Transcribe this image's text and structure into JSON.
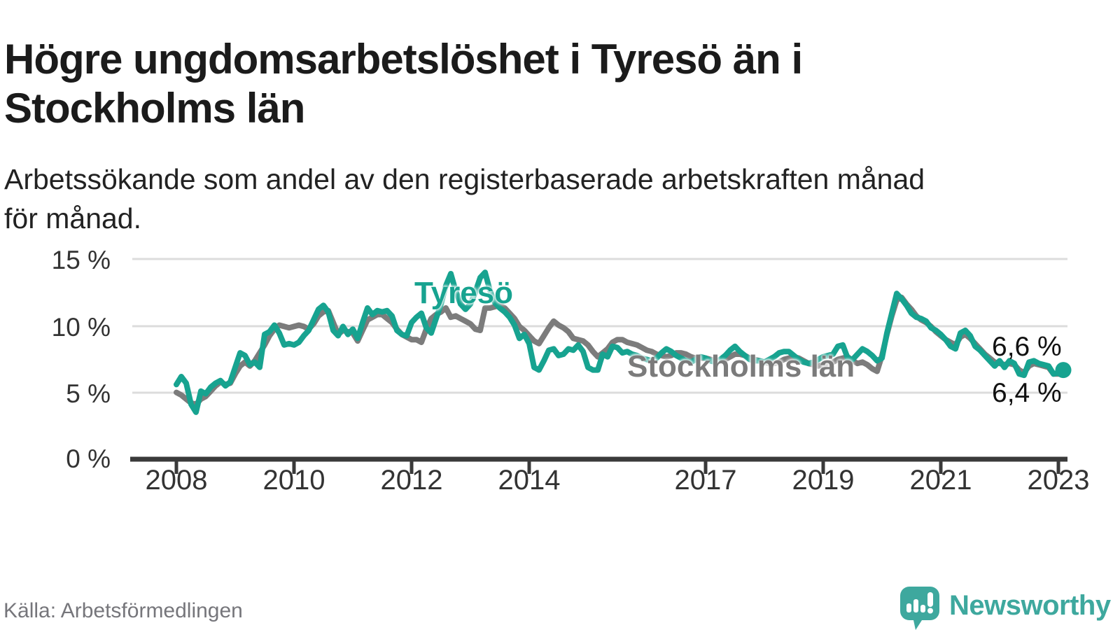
{
  "header": {
    "title_lines": "Högre ungdomsarbetslöshet i Tyresö än i\nStockholms län",
    "subtitle_lines": "Arbetssökande som andel av den registerbaserade arbetskraften månad\nför månad."
  },
  "footer": {
    "source": "Källa: Arbetsförmedlingen",
    "brand": "Newsworthy"
  },
  "colors": {
    "tyreso": "#17A390",
    "stockholm": "#7C7C7C",
    "logo": "#3EA89E",
    "grid": "#DCDCDC",
    "axis": "#3A3A3A"
  },
  "chart_data": {
    "type": "line",
    "unit": "%",
    "x_unit": "month",
    "x_range": [
      "2008-01",
      "2023-02"
    ],
    "x_tick_labels": [
      "2008",
      "2010",
      "2012",
      "2014",
      "2017",
      "2019",
      "2021",
      "2023"
    ],
    "y_tick_labels": [
      "0 %",
      "5 %",
      "10 %",
      "15 %"
    ],
    "y_tick_values": [
      0,
      5,
      10,
      15
    ],
    "ylim": [
      0,
      15.5
    ],
    "grid": "horizontal",
    "legend_position": "inline-labels",
    "series": [
      {
        "name": "Tyresö",
        "color": "#17A390",
        "end_label": "6,6 %",
        "end_value": 6.6,
        "end_marker": true,
        "values": [
          5.5,
          6.1,
          5.6,
          4.0,
          3.4,
          5.0,
          4.8,
          5.3,
          5.6,
          5.8,
          5.4,
          5.7,
          6.8,
          7.9,
          7.7,
          7.0,
          7.2,
          6.8,
          9.3,
          9.5,
          10.0,
          9.4,
          8.5,
          8.6,
          8.5,
          8.7,
          9.2,
          9.6,
          10.4,
          11.2,
          11.5,
          11.0,
          9.6,
          9.2,
          9.9,
          9.3,
          9.7,
          9.0,
          10.2,
          11.3,
          10.8,
          11.1,
          11.0,
          11.1,
          10.7,
          9.6,
          9.3,
          9.2,
          10.2,
          10.6,
          10.9,
          9.8,
          9.4,
          10.5,
          11.6,
          13.0,
          13.9,
          12.6,
          11.6,
          11.2,
          11.6,
          12.5,
          13.6,
          14.0,
          12.6,
          11.7,
          11.3,
          11.0,
          10.6,
          10.0,
          9.0,
          9.3,
          8.6,
          6.8,
          6.6,
          7.3,
          8.1,
          8.2,
          7.7,
          7.8,
          8.2,
          8.1,
          8.5,
          8.0,
          6.8,
          6.6,
          6.6,
          7.8,
          7.6,
          8.4,
          8.3,
          7.9,
          8.0,
          7.8,
          7.7,
          7.5,
          7.4,
          7.3,
          7.5,
          7.9,
          8.2,
          8.0,
          7.7,
          7.5,
          7.3,
          7.2,
          7.4,
          7.6,
          7.5,
          7.3,
          7.2,
          7.4,
          7.7,
          8.1,
          8.4,
          8.0,
          7.7,
          7.4,
          7.3,
          7.3,
          7.2,
          7.4,
          7.6,
          7.9,
          8.0,
          8.0,
          7.7,
          7.4,
          7.2,
          7.1,
          7.2,
          7.4,
          7.6,
          7.7,
          7.8,
          8.4,
          8.5,
          7.5,
          7.4,
          7.8,
          8.2,
          8.0,
          7.7,
          7.3,
          7.5,
          9.4,
          10.9,
          12.4,
          12.0,
          11.5,
          10.9,
          10.6,
          10.5,
          10.3,
          9.8,
          9.6,
          9.3,
          8.9,
          8.4,
          8.2,
          9.4,
          9.6,
          9.2,
          8.4,
          8.1,
          7.7,
          7.3,
          6.9,
          7.3,
          6.8,
          7.3,
          7.1,
          6.3,
          6.2,
          7.2,
          7.3,
          7.1,
          7.0,
          6.9,
          6.3,
          6.4,
          6.6
        ]
      },
      {
        "name": "Stockholms län",
        "color": "#7C7C7C",
        "end_label": "6,4 %",
        "end_value": 6.4,
        "end_marker": false,
        "values": [
          4.9,
          4.7,
          4.4,
          4.1,
          4.0,
          4.4,
          4.6,
          5.0,
          5.4,
          5.7,
          5.5,
          5.6,
          6.3,
          6.9,
          7.2,
          6.9,
          7.3,
          7.9,
          8.5,
          9.2,
          9.7,
          10.0,
          9.9,
          9.8,
          9.9,
          10.0,
          9.9,
          9.7,
          10.1,
          10.7,
          11.0,
          11.1,
          10.2,
          9.3,
          9.6,
          9.5,
          9.4,
          8.8,
          9.6,
          10.4,
          10.6,
          10.8,
          10.8,
          10.5,
          10.2,
          9.7,
          9.3,
          9.1,
          8.9,
          8.9,
          8.7,
          9.7,
          10.5,
          10.8,
          11.0,
          11.3,
          10.6,
          10.7,
          10.5,
          10.3,
          10.1,
          9.7,
          9.6,
          11.3,
          11.3,
          11.4,
          11.5,
          11.3,
          10.9,
          10.5,
          9.9,
          9.6,
          9.2,
          8.8,
          8.6,
          9.2,
          9.8,
          10.3,
          10.0,
          9.8,
          9.5,
          9.0,
          8.9,
          8.8,
          8.5,
          8.0,
          7.6,
          7.9,
          8.2,
          8.7,
          8.9,
          8.9,
          8.7,
          8.6,
          8.5,
          8.3,
          8.1,
          8.0,
          7.8,
          7.7,
          7.6,
          7.7,
          7.9,
          7.9,
          7.8,
          7.6,
          7.5,
          7.5,
          7.5,
          7.4,
          7.3,
          7.3,
          7.4,
          7.6,
          7.8,
          7.8,
          7.7,
          7.5,
          7.4,
          7.3,
          7.2,
          7.1,
          7.1,
          7.2,
          7.4,
          7.5,
          7.6,
          7.5,
          7.3,
          7.1,
          7.0,
          6.9,
          7.0,
          7.1,
          7.2,
          7.4,
          7.5,
          7.6,
          7.3,
          7.1,
          7.2,
          7.0,
          6.7,
          6.5,
          7.7,
          9.3,
          10.7,
          11.9,
          12.1,
          11.6,
          11.2,
          10.7,
          10.4,
          10.2,
          9.9,
          9.5,
          9.2,
          8.9,
          8.7,
          8.5,
          9.1,
          9.3,
          9.0,
          8.6,
          8.2,
          7.8,
          7.5,
          7.2,
          7.1,
          7.0,
          7.1,
          7.0,
          6.6,
          6.4,
          6.9,
          7.1,
          7.0,
          6.9,
          6.8,
          6.3,
          6.3,
          6.4
        ]
      }
    ]
  }
}
